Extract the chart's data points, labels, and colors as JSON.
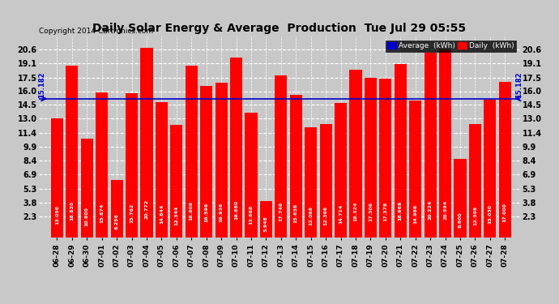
{
  "title": "Daily Solar Energy & Average  Production  Tue Jul 29 05:55",
  "copyright": "Copyright 2014 Cartronics.com",
  "average": 15.182,
  "average_label": "15.182",
  "bar_color": "#FF0000",
  "average_line_color": "#0000CC",
  "background_color": "#C8C8C8",
  "grid_color": "white",
  "categories": [
    "06-28",
    "06-29",
    "06-30",
    "07-01",
    "07-02",
    "07-03",
    "07-04",
    "07-05",
    "07-06",
    "07-07",
    "07-08",
    "07-09",
    "07-10",
    "07-11",
    "07-12",
    "07-13",
    "07-14",
    "07-15",
    "07-16",
    "07-17",
    "07-18",
    "07-19",
    "07-20",
    "07-21",
    "07-22",
    "07-23",
    "07-24",
    "07-25",
    "07-26",
    "07-27",
    "07-28"
  ],
  "values": [
    13.056,
    18.82,
    10.8,
    15.874,
    6.256,
    15.762,
    20.772,
    14.844,
    12.344,
    18.808,
    16.596,
    16.936,
    19.68,
    13.668,
    3.948,
    17.746,
    15.638,
    12.068,
    12.396,
    14.714,
    18.324,
    17.506,
    17.378,
    18.968,
    14.986,
    20.224,
    20.594,
    8.6,
    12.398,
    15.03,
    17.0
  ],
  "yticks": [
    2.3,
    3.8,
    5.3,
    6.9,
    8.4,
    9.9,
    11.4,
    13.0,
    14.5,
    16.0,
    17.5,
    19.1,
    20.6
  ],
  "ylim": [
    0,
    22.0
  ],
  "legend_average_color": "#0000CC",
  "legend_daily_color": "#FF0000",
  "legend_average_text": "Average  (kWh)",
  "legend_daily_text": "Daily  (kWh)"
}
